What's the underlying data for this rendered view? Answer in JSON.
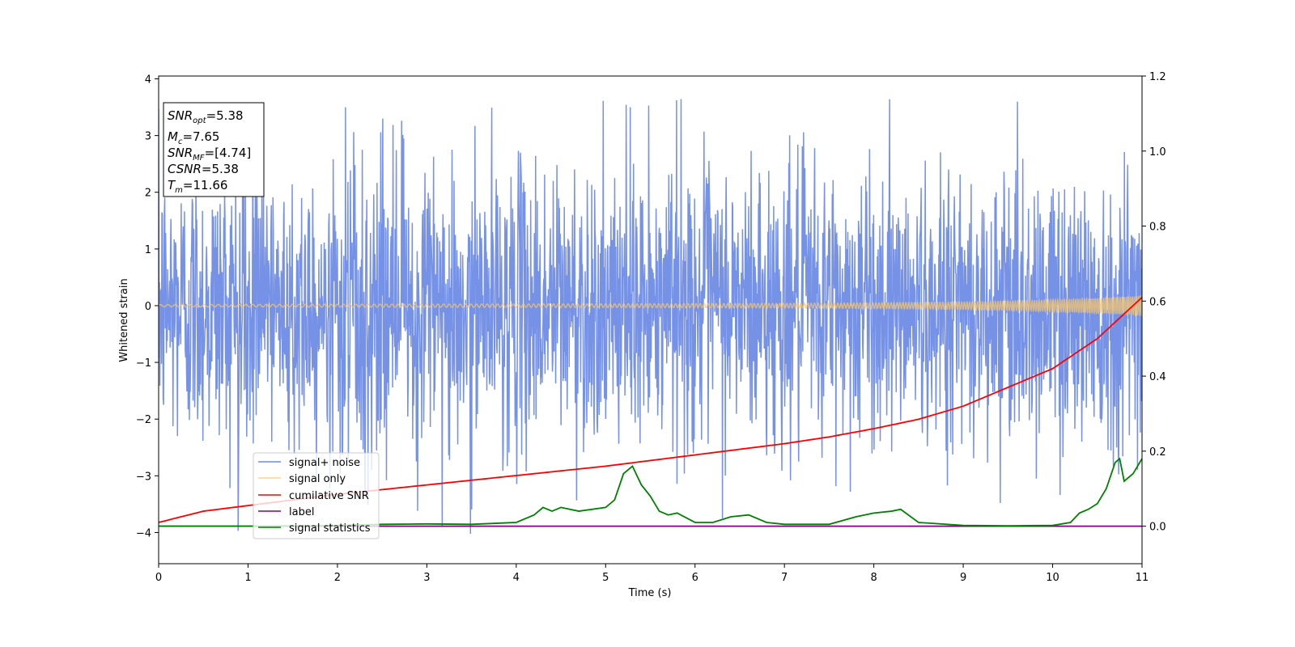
{
  "chart_data": {
    "type": "line",
    "xlabel": "Time (s)",
    "ylabel": "Whitened strain",
    "xlim": [
      0,
      11
    ],
    "ylim": [
      -4.55,
      4.05
    ],
    "y2lim": [
      -0.1,
      1.2
    ],
    "xticks": [
      0,
      1,
      2,
      3,
      4,
      5,
      6,
      7,
      8,
      9,
      10,
      11
    ],
    "yticks": [
      -4,
      -3,
      -2,
      -1,
      0,
      1,
      2,
      3,
      4
    ],
    "y2ticks": [
      0.0,
      0.2,
      0.4,
      0.6,
      0.8,
      1.0,
      1.2
    ],
    "grid": false,
    "legend_position": "lower-left",
    "colors": {
      "noise": "#6f8ce6",
      "signal": "#f5c56e",
      "cumsnr": "#ff0000",
      "label": "#800080",
      "stats": "#008000"
    },
    "textbox": {
      "l1_base": "SNR",
      "l1_sub": "opt",
      "l1_val": "=5.38",
      "l2_base": "M",
      "l2_sub": "c",
      "l2_val": "=7.65",
      "l3_base": "SNR",
      "l3_sub": "MF",
      "l3_val": "=[4.74]",
      "l4_base": "CSNR",
      "l4_val": "=5.38",
      "l5_base": "T",
      "l5_sub": "m",
      "l5_val": "=11.66"
    },
    "series": [
      {
        "name": "signal+ noise",
        "axis": "left",
        "kind": "noise",
        "approx_range": [
          -4.15,
          3.65
        ],
        "typical_band": [
          -2.4,
          2.3
        ]
      },
      {
        "name": "signal only",
        "axis": "left",
        "kind": "chirp",
        "x": [
          0,
          2,
          4,
          6,
          7,
          8,
          9,
          9.5,
          10,
          10.5,
          11
        ],
        "amplitude": [
          0.02,
          0.025,
          0.03,
          0.035,
          0.04,
          0.05,
          0.065,
          0.08,
          0.1,
          0.13,
          0.17
        ]
      },
      {
        "name": "cumilative SNR",
        "axis": "right",
        "x": [
          0,
          0.5,
          1,
          2,
          3,
          4,
          5,
          6,
          7,
          7.5,
          8,
          8.5,
          9,
          9.5,
          10,
          10.5,
          11
        ],
        "y": [
          0.01,
          0.04,
          0.055,
          0.085,
          0.11,
          0.135,
          0.16,
          0.19,
          0.22,
          0.238,
          0.26,
          0.285,
          0.32,
          0.37,
          0.42,
          0.5,
          0.61
        ]
      },
      {
        "name": "label",
        "axis": "right",
        "x": [
          0,
          11
        ],
        "y": [
          0.0,
          0.0
        ]
      },
      {
        "name": "signal statistics",
        "axis": "right",
        "x": [
          0,
          1,
          2,
          2.5,
          3,
          3.5,
          4,
          4.2,
          4.3,
          4.4,
          4.5,
          4.7,
          5,
          5.1,
          5.2,
          5.3,
          5.4,
          5.5,
          5.6,
          5.7,
          5.8,
          6,
          6.2,
          6.4,
          6.6,
          6.8,
          7,
          7.5,
          7.8,
          8,
          8.2,
          8.3,
          8.5,
          9,
          9.5,
          10,
          10.2,
          10.3,
          10.4,
          10.5,
          10.6,
          10.7,
          10.75,
          10.8,
          10.9,
          11
        ],
        "y": [
          0.0,
          0.0,
          0.002,
          0.005,
          0.006,
          0.005,
          0.01,
          0.03,
          0.05,
          0.04,
          0.05,
          0.04,
          0.05,
          0.07,
          0.14,
          0.16,
          0.11,
          0.08,
          0.04,
          0.03,
          0.035,
          0.01,
          0.01,
          0.025,
          0.03,
          0.01,
          0.005,
          0.005,
          0.025,
          0.035,
          0.04,
          0.045,
          0.01,
          0.002,
          0.001,
          0.002,
          0.01,
          0.035,
          0.045,
          0.06,
          0.1,
          0.17,
          0.18,
          0.12,
          0.14,
          0.18
        ]
      }
    ]
  }
}
